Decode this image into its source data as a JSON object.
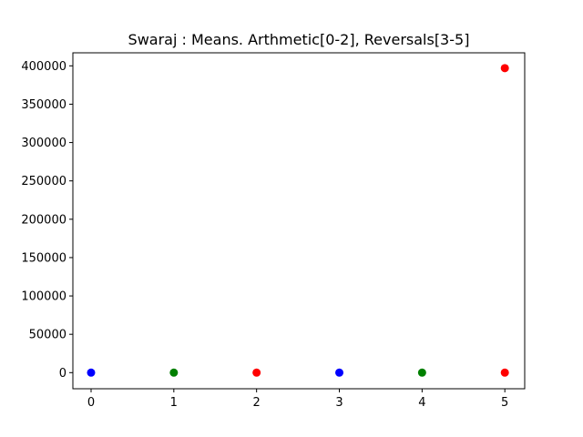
{
  "chart_data": {
    "type": "scatter",
    "title": "Swaraj : Means. Arthmetic[0-2], Reversals[3-5]",
    "xlabel": "",
    "ylabel": "",
    "xlim": [
      -0.22,
      5.24
    ],
    "ylim": [
      -21000,
      417000
    ],
    "x_ticks": [
      "0",
      "1",
      "2",
      "3",
      "4",
      "5"
    ],
    "y_ticks": [
      "0",
      "50000",
      "100000",
      "150000",
      "200000",
      "250000",
      "300000",
      "350000",
      "400000"
    ],
    "grid": false,
    "legend": "none",
    "series": [
      {
        "color": "#0000ff",
        "points": [
          {
            "x": 0,
            "y": 0
          },
          {
            "x": 3,
            "y": 0
          }
        ]
      },
      {
        "color": "#008000",
        "points": [
          {
            "x": 1,
            "y": 0
          },
          {
            "x": 4,
            "y": 0
          }
        ]
      },
      {
        "color": "#ff0000",
        "points": [
          {
            "x": 2,
            "y": 0
          },
          {
            "x": 5,
            "y": 0
          },
          {
            "x": 5,
            "y": 397000
          }
        ]
      }
    ]
  }
}
